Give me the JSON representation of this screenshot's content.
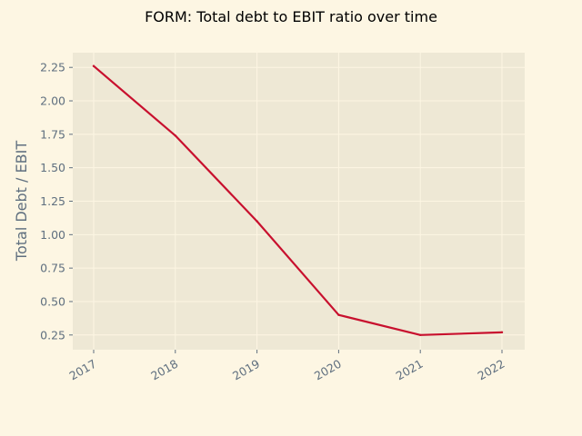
{
  "colors": {
    "page_background": "#fdf6e3",
    "plot_background": "#eee8d5",
    "grid": "#fdf6e3",
    "line": "#c8102e",
    "tick_text": "#5f6f7f",
    "title_text": "#000000"
  },
  "chart_data": {
    "type": "line",
    "title": "FORM: Total debt to EBIT ratio over time",
    "xlabel": "",
    "ylabel": "Total Debt / EBIT",
    "x": [
      "2017",
      "2018",
      "2019",
      "2020",
      "2021",
      "2022"
    ],
    "series": [
      {
        "values": [
          2.26,
          1.74,
          1.1,
          0.4,
          0.25,
          0.27
        ]
      }
    ],
    "ylim": [
      0.14,
      2.36
    ],
    "yticks": [
      "0.25",
      "0.50",
      "0.75",
      "1.00",
      "1.25",
      "1.50",
      "1.75",
      "2.00",
      "2.25"
    ],
    "grid": true,
    "legend": "none"
  }
}
